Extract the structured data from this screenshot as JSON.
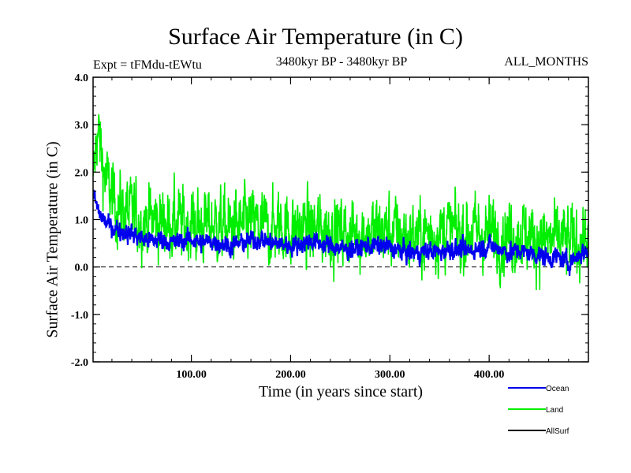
{
  "chart_data": {
    "type": "line",
    "title": "Surface Air Temperature (in C)",
    "subtitle_left": "Expt = tFMdu-tEWtu",
    "subtitle_center": "3480kyr BP - 3480kyr BP",
    "subtitle_right": "ALL_MONTHS",
    "xlabel": "Time (in years since start)",
    "ylabel": "Surface Air Temperature (in C)",
    "xlim": [
      1,
      500
    ],
    "ylim": [
      -2.0,
      4.0
    ],
    "x_ticks": [
      100,
      200,
      300,
      400
    ],
    "x_tick_labels": [
      "100.00",
      "200.00",
      "300.00",
      "400.00"
    ],
    "y_ticks": [
      -2,
      -1,
      0,
      1,
      2,
      3,
      4
    ],
    "y_tick_labels": [
      "-2.0",
      "-1.0",
      "0.0",
      "1.0",
      "2.0",
      "3.0",
      "4.0"
    ],
    "zero_line": "dashed",
    "legend_position": "bottom-right",
    "series": [
      {
        "name": "Land",
        "color": "#00ee00",
        "x": [
          1,
          3,
          5,
          8,
          12,
          16,
          20,
          25,
          30,
          40,
          50,
          60,
          70,
          80,
          90,
          100,
          110,
          120,
          130,
          140,
          150,
          160,
          170,
          180,
          190,
          200,
          210,
          220,
          230,
          240,
          250,
          260,
          270,
          280,
          290,
          300,
          310,
          320,
          330,
          340,
          350,
          360,
          370,
          380,
          390,
          400,
          410,
          420,
          430,
          440,
          450,
          460,
          470,
          480,
          490,
          500
        ],
        "values": [
          1.6,
          2.3,
          2.9,
          2.6,
          2.0,
          1.7,
          1.5,
          1.3,
          1.2,
          1.1,
          1.0,
          1.0,
          0.95,
          0.95,
          0.9,
          0.9,
          0.85,
          0.9,
          0.85,
          0.8,
          0.85,
          0.9,
          0.85,
          0.8,
          0.85,
          0.8,
          0.8,
          0.8,
          0.75,
          0.8,
          0.75,
          0.7,
          0.75,
          0.7,
          0.75,
          0.75,
          0.7,
          0.6,
          0.65,
          0.7,
          0.75,
          0.8,
          0.7,
          0.75,
          0.7,
          0.7,
          0.65,
          0.7,
          0.7,
          0.65,
          0.6,
          0.55,
          0.6,
          0.5,
          0.55,
          0.6
        ],
        "noise_amplitude": 0.45
      },
      {
        "name": "Ocean",
        "color": "#0000ee",
        "x": [
          1,
          3,
          5,
          8,
          12,
          16,
          20,
          25,
          30,
          40,
          50,
          60,
          70,
          80,
          90,
          100,
          110,
          120,
          130,
          140,
          150,
          160,
          170,
          180,
          190,
          200,
          210,
          220,
          230,
          240,
          250,
          260,
          270,
          280,
          290,
          300,
          310,
          320,
          330,
          340,
          350,
          360,
          370,
          380,
          390,
          400,
          410,
          420,
          430,
          440,
          450,
          460,
          470,
          480,
          490,
          500
        ],
        "values": [
          1.5,
          1.4,
          1.25,
          1.1,
          1.0,
          0.9,
          0.85,
          0.8,
          0.75,
          0.7,
          0.6,
          0.55,
          0.6,
          0.5,
          0.55,
          0.6,
          0.5,
          0.55,
          0.5,
          0.45,
          0.5,
          0.55,
          0.6,
          0.5,
          0.5,
          0.45,
          0.5,
          0.55,
          0.5,
          0.45,
          0.4,
          0.35,
          0.4,
          0.45,
          0.45,
          0.4,
          0.35,
          0.3,
          0.3,
          0.35,
          0.3,
          0.4,
          0.35,
          0.35,
          0.4,
          0.45,
          0.4,
          0.3,
          0.35,
          0.3,
          0.25,
          0.2,
          0.2,
          0.1,
          0.25,
          0.35
        ],
        "noise_amplitude": 0.12
      },
      {
        "name": "AllSurf",
        "color": "#000000",
        "x": [],
        "values": []
      }
    ]
  }
}
